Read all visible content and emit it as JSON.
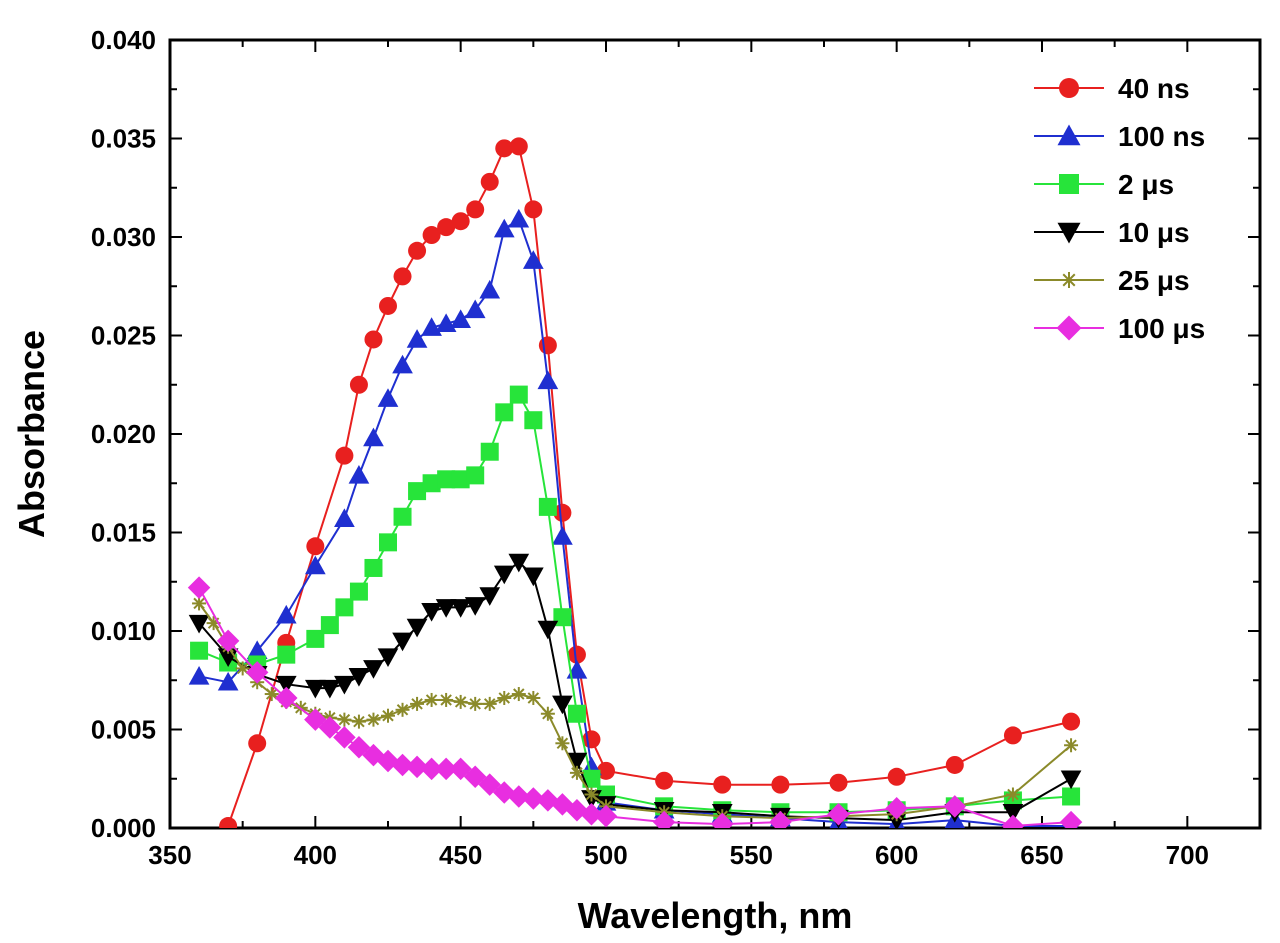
{
  "chart_data": {
    "type": "line",
    "title": "",
    "xlabel": "Wavelength, nm",
    "ylabel": "Absorbance",
    "xlim": [
      350,
      725
    ],
    "ylim": [
      0,
      0.04
    ],
    "xticks": [
      350,
      400,
      450,
      500,
      550,
      600,
      650,
      700
    ],
    "xtick_labels": [
      "350",
      "400",
      "450",
      "500",
      "550",
      "600",
      "650",
      "700"
    ],
    "yticks": [
      0,
      0.005,
      0.01,
      0.015,
      0.02,
      0.025,
      0.03,
      0.035,
      0.04
    ],
    "ytick_labels": [
      "0.000",
      "0.005",
      "0.010",
      "0.015",
      "0.020",
      "0.025",
      "0.030",
      "0.035",
      "0.040"
    ],
    "grid": false,
    "legend_position": "top-right",
    "series": [
      {
        "name": "40 ns",
        "color": "#e8201f",
        "marker": "circle",
        "x": [
          370,
          380,
          390,
          400,
          410,
          415,
          420,
          425,
          430,
          435,
          440,
          445,
          450,
          455,
          460,
          465,
          470,
          475,
          480,
          485,
          490,
          495,
          500,
          520,
          540,
          560,
          580,
          600,
          620,
          640,
          660
        ],
        "y": [
          0.0001,
          0.0043,
          0.0094,
          0.0143,
          0.0189,
          0.0225,
          0.0248,
          0.0265,
          0.028,
          0.0293,
          0.0301,
          0.0305,
          0.0308,
          0.0314,
          0.0328,
          0.0345,
          0.0346,
          0.0314,
          0.0245,
          0.016,
          0.0088,
          0.0045,
          0.0029,
          0.0024,
          0.0022,
          0.0022,
          0.0023,
          0.0026,
          0.0032,
          0.0047,
          0.0054
        ]
      },
      {
        "name": "100 ns",
        "color": "#1f2fd0",
        "marker": "triangle-up",
        "x": [
          360,
          370,
          380,
          390,
          400,
          410,
          415,
          420,
          425,
          430,
          435,
          440,
          445,
          450,
          455,
          460,
          465,
          470,
          475,
          480,
          485,
          490,
          495,
          500,
          520,
          540,
          560,
          580,
          600,
          620,
          640,
          660
        ],
        "y": [
          0.0077,
          0.0074,
          0.009,
          0.0108,
          0.0133,
          0.0157,
          0.0179,
          0.0198,
          0.0218,
          0.0235,
          0.0248,
          0.0254,
          0.0256,
          0.0258,
          0.0263,
          0.0273,
          0.0304,
          0.0309,
          0.0288,
          0.0227,
          0.0148,
          0.008,
          0.0031,
          0.0013,
          0.0009,
          0.0007,
          0.0005,
          0.0003,
          0.0002,
          0.0004,
          0.0001,
          0.0001
        ]
      },
      {
        "name": "2 μs",
        "color": "#27e43a",
        "marker": "square",
        "x": [
          360,
          370,
          380,
          390,
          400,
          405,
          410,
          415,
          420,
          425,
          430,
          435,
          440,
          445,
          450,
          455,
          460,
          465,
          470,
          475,
          480,
          485,
          490,
          495,
          500,
          520,
          540,
          560,
          580,
          600,
          620,
          640,
          660
        ],
        "y": [
          0.009,
          0.0084,
          0.0083,
          0.0088,
          0.0096,
          0.0103,
          0.0112,
          0.012,
          0.0132,
          0.0145,
          0.0158,
          0.0171,
          0.0175,
          0.0177,
          0.0177,
          0.0179,
          0.0191,
          0.0211,
          0.022,
          0.0207,
          0.0163,
          0.0107,
          0.0058,
          0.0025,
          0.0017,
          0.0011,
          0.0009,
          0.0008,
          0.0008,
          0.0009,
          0.0011,
          0.0014,
          0.0016
        ]
      },
      {
        "name": "10 μs",
        "color": "#000000",
        "marker": "triangle-down",
        "x": [
          360,
          370,
          380,
          390,
          400,
          405,
          410,
          415,
          420,
          425,
          430,
          435,
          440,
          445,
          450,
          455,
          460,
          465,
          470,
          475,
          480,
          485,
          490,
          495,
          500,
          520,
          540,
          560,
          580,
          600,
          620,
          640,
          660
        ],
        "y": [
          0.0104,
          0.0087,
          0.0078,
          0.0073,
          0.0071,
          0.0071,
          0.0073,
          0.0077,
          0.0081,
          0.0087,
          0.0095,
          0.0102,
          0.011,
          0.0112,
          0.0112,
          0.0113,
          0.0118,
          0.0129,
          0.0135,
          0.0128,
          0.0101,
          0.0063,
          0.0034,
          0.0015,
          0.0012,
          0.0009,
          0.0008,
          0.0006,
          0.0005,
          0.0004,
          0.0008,
          0.0008,
          0.0025
        ]
      },
      {
        "name": "25 μs",
        "color": "#8b8a2a",
        "marker": "star",
        "x": [
          360,
          365,
          370,
          375,
          380,
          385,
          390,
          395,
          400,
          405,
          410,
          415,
          420,
          425,
          430,
          435,
          440,
          445,
          450,
          455,
          460,
          465,
          470,
          475,
          480,
          485,
          490,
          495,
          500,
          520,
          540,
          560,
          580,
          600,
          620,
          640,
          660
        ],
        "y": [
          0.0114,
          0.0104,
          0.0092,
          0.0081,
          0.0074,
          0.0068,
          0.0064,
          0.0061,
          0.0058,
          0.0056,
          0.0055,
          0.0054,
          0.0055,
          0.0057,
          0.006,
          0.0063,
          0.0065,
          0.0065,
          0.0064,
          0.0063,
          0.0063,
          0.0066,
          0.0068,
          0.0066,
          0.0058,
          0.0043,
          0.0028,
          0.0017,
          0.0011,
          0.0008,
          0.0006,
          0.0005,
          0.0006,
          0.0007,
          0.0011,
          0.0017,
          0.0042
        ]
      },
      {
        "name": "100 μs",
        "color": "#e82ee0",
        "marker": "diamond",
        "x": [
          360,
          370,
          380,
          390,
          400,
          405,
          410,
          415,
          420,
          425,
          430,
          435,
          440,
          445,
          450,
          455,
          460,
          465,
          470,
          475,
          480,
          485,
          490,
          495,
          500,
          520,
          540,
          560,
          580,
          600,
          620,
          640,
          660
        ],
        "y": [
          0.0122,
          0.0095,
          0.0079,
          0.0066,
          0.0055,
          0.0051,
          0.0046,
          0.0041,
          0.0037,
          0.0034,
          0.0032,
          0.0031,
          0.003,
          0.003,
          0.003,
          0.0026,
          0.0022,
          0.0018,
          0.0016,
          0.0015,
          0.0014,
          0.0012,
          0.0009,
          0.0007,
          0.0006,
          0.0003,
          0.0002,
          0.0003,
          0.0007,
          0.001,
          0.0011,
          0.0001,
          0.0003
        ]
      }
    ]
  }
}
